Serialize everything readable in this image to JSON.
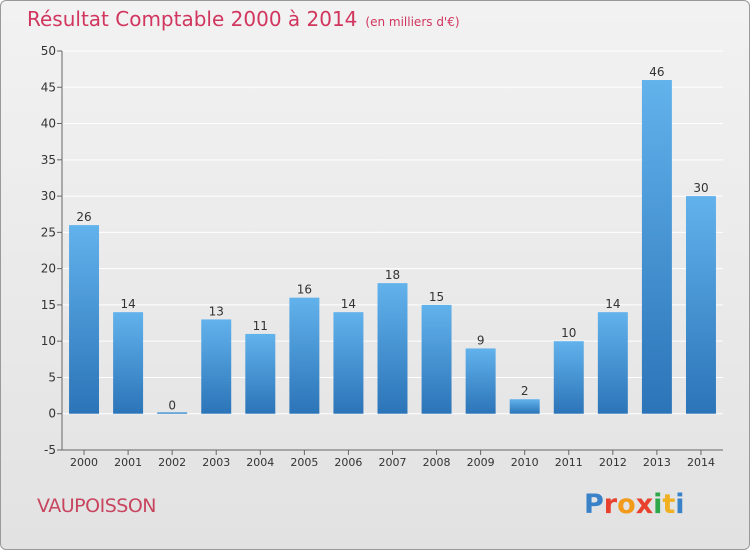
{
  "header": {
    "title": "Résultat Comptable 2000 à 2014",
    "subtitle": "(en milliers d'€)"
  },
  "footer": {
    "town": "VAUPOISSON",
    "logo": "Proxiti",
    "logo_colors": [
      "#3a82c8",
      "#e8422f",
      "#f29a1a",
      "#e8422f",
      "#2ea84a",
      "#f0b020",
      "#3a82c8"
    ]
  },
  "colors": {
    "bar_top": "#62b2ec",
    "bar_bottom": "#2b74b8",
    "axis": "#666666",
    "grid": "#ffffff",
    "title": "#d1365f"
  },
  "chart_data": {
    "type": "bar",
    "categories": [
      "2000",
      "2001",
      "2002",
      "2003",
      "2004",
      "2005",
      "2006",
      "2007",
      "2008",
      "2009",
      "2010",
      "2011",
      "2012",
      "2013",
      "2014"
    ],
    "values": [
      26,
      14,
      0,
      13,
      11,
      16,
      14,
      18,
      15,
      9,
      2,
      10,
      14,
      46,
      30
    ],
    "ylim": [
      -5,
      50
    ],
    "yticks": [
      -5,
      0,
      5,
      10,
      15,
      20,
      25,
      30,
      35,
      40,
      45,
      50
    ],
    "grid": true,
    "legend": "none"
  }
}
